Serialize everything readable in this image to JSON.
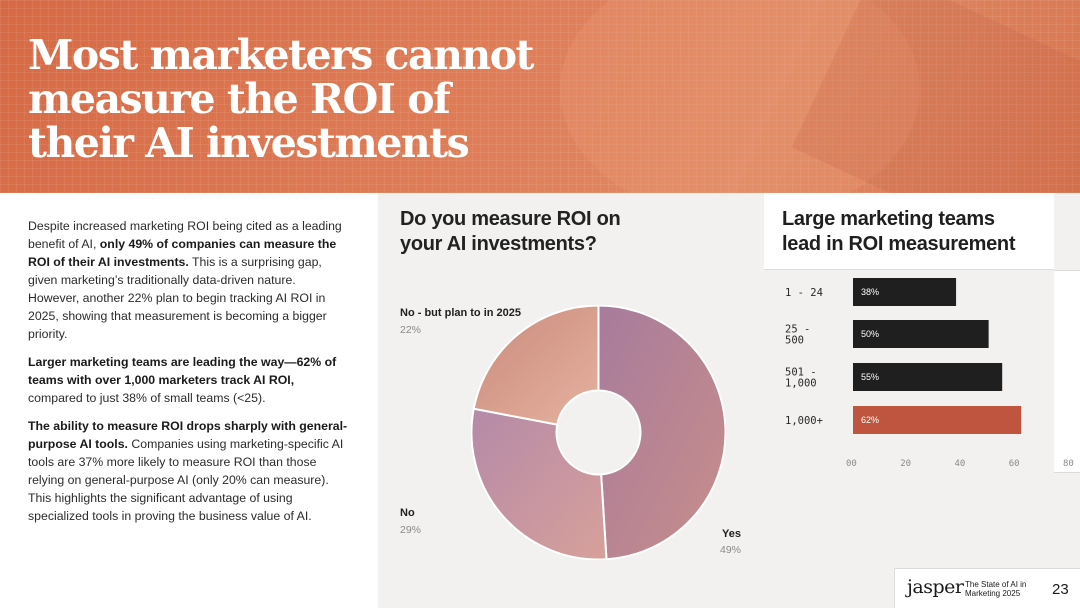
{
  "header": {
    "title_line1": "Most marketers cannot",
    "title_line2": "measure the ROI of",
    "title_line3": "their AI investments"
  },
  "body": {
    "p1_a": "Despite increased marketing ROI being cited as a leading benefit of AI, ",
    "p1_b": "only 49% of companies can measure the ROI of their AI investments.",
    "p1_c": " This is a surprising gap, given marketing’s traditionally data-driven nature. However, another 22% plan to begin tracking AI ROI in 2025, showing that measurement is becoming a bigger priority.",
    "p2_a": "Larger marketing teams are leading the way—62% of teams with over 1,000 marketers track AI ROI,",
    "p2_b": " compared to just 38% of small teams (<25).",
    "p3_a": "The ability to measure ROI drops sharply with general-purpose AI tools.",
    "p3_b": " Companies using marketing-specific AI tools are 37% more likely to measure ROI than those relying on general-purpose AI (only 20% can measure). This highlights the significant advantage of using specialized tools in proving the business value of AI."
  },
  "chart_data": [
    {
      "type": "pie",
      "title": "Do you measure ROI on your AI investments?",
      "donut": true,
      "slices": [
        {
          "label": "Yes",
          "value": 49,
          "display": "49%",
          "color": "#b87f94"
        },
        {
          "label": "No",
          "value": 29,
          "display": "29%",
          "color": "#c594a3"
        },
        {
          "label": "No - but plan to in 2025",
          "value": 22,
          "display": "22%",
          "color": "#d69a8e"
        }
      ]
    },
    {
      "type": "bar",
      "orientation": "horizontal",
      "title": "Large marketing teams lead in ROI measurement",
      "categories": [
        "1 - 24",
        "25 - 500",
        "501 - 1,000",
        "1,000+"
      ],
      "category_lines": [
        [
          "1 - 24"
        ],
        [
          "25 -",
          "500"
        ],
        [
          "501 -",
          "1,000"
        ],
        [
          "1,000+"
        ]
      ],
      "values": [
        38,
        50,
        55,
        62
      ],
      "value_labels": [
        "38%",
        "50%",
        "55%",
        "62%"
      ],
      "colors": [
        "#1f1f1f",
        "#1f1f1f",
        "#1f1f1f",
        "#c0553f"
      ],
      "xlim": [
        0,
        80
      ],
      "xticks": [
        0,
        20,
        40,
        60,
        80
      ],
      "xtick_labels": [
        "00",
        "20",
        "40",
        "60",
        "80"
      ],
      "grid": false
    }
  ],
  "footer": {
    "brand": "jasper",
    "report_line1": "The State of AI in",
    "report_line2": "Marketing 2025",
    "page": "23"
  }
}
